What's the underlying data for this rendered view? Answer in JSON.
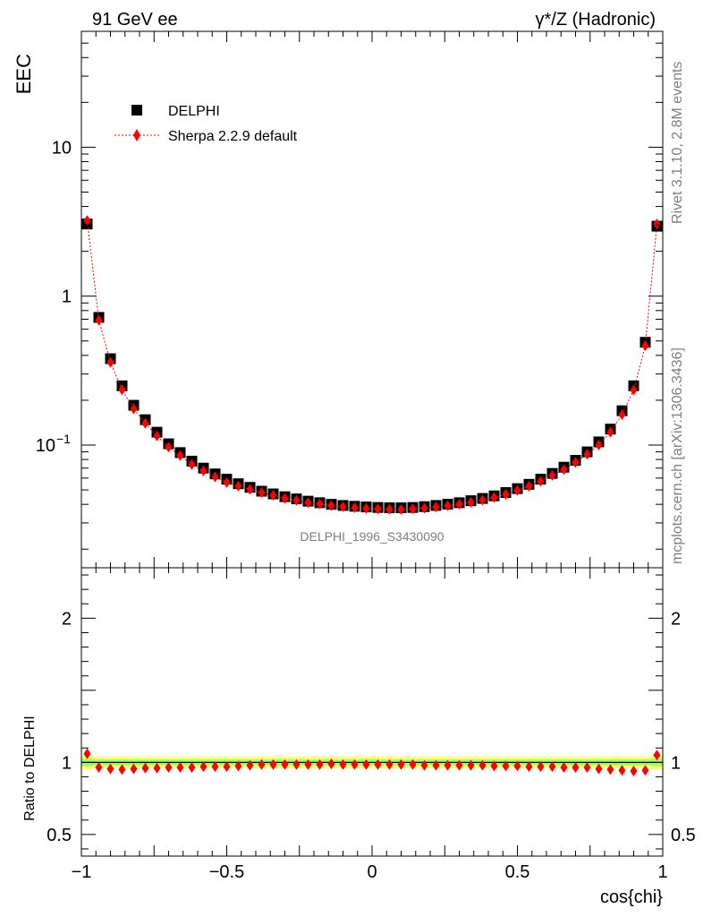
{
  "header": {
    "left": "91 GeV ee",
    "right": "γ*/Z (Hadronic)"
  },
  "side_labels": {
    "rivet": "Rivet 3.1.10,  2.8M events",
    "source": "mcplots.cern.ch [arXiv:1306.3436]"
  },
  "watermark": "DELPHI_1996_S3430090",
  "colors": {
    "data": "#000000",
    "mc": "#ff0000",
    "band_outer": "#ffff66",
    "band_inner": "#99ff66"
  },
  "chart_data": [
    {
      "type": "scatter",
      "ylabel": "EEC",
      "xlabel": "cos{chi}",
      "xlim": [
        -1.0,
        1.0
      ],
      "ylim": [
        0.015,
        60
      ],
      "yscale": "log",
      "yticks": [
        "10",
        "1",
        "10^-1"
      ],
      "legend_position": "top-left",
      "x": [
        -0.98,
        -0.94,
        -0.9,
        -0.86,
        -0.82,
        -0.78,
        -0.74,
        -0.7,
        -0.66,
        -0.62,
        -0.58,
        -0.54,
        -0.5,
        -0.46,
        -0.42,
        -0.38,
        -0.34,
        -0.3,
        -0.26,
        -0.22,
        -0.18,
        -0.14,
        -0.1,
        -0.06,
        -0.02,
        0.02,
        0.06,
        0.1,
        0.14,
        0.18,
        0.22,
        0.26,
        0.3,
        0.34,
        0.38,
        0.42,
        0.46,
        0.5,
        0.54,
        0.58,
        0.62,
        0.66,
        0.7,
        0.74,
        0.78,
        0.82,
        0.86,
        0.9,
        0.94,
        0.98
      ],
      "series": [
        {
          "name": "DELPHI",
          "marker": "square",
          "values": [
            3.05,
            0.72,
            0.38,
            0.25,
            0.185,
            0.148,
            0.122,
            0.102,
            0.089,
            0.078,
            0.07,
            0.064,
            0.059,
            0.055,
            0.052,
            0.049,
            0.047,
            0.045,
            0.0435,
            0.042,
            0.041,
            0.04,
            0.0393,
            0.0388,
            0.0384,
            0.0381,
            0.0379,
            0.0379,
            0.0381,
            0.0386,
            0.0393,
            0.0401,
            0.041,
            0.0423,
            0.0438,
            0.0456,
            0.048,
            0.051,
            0.0545,
            0.059,
            0.0645,
            0.071,
            0.079,
            0.09,
            0.105,
            0.128,
            0.17,
            0.25,
            0.49,
            2.95
          ]
        },
        {
          "name": "Sherpa 2.2.9 default",
          "marker": "diamond",
          "line": "dotted",
          "values": [
            3.22,
            0.69,
            0.36,
            0.235,
            0.175,
            0.14,
            0.115,
            0.097,
            0.085,
            0.074,
            0.067,
            0.061,
            0.056,
            0.053,
            0.0505,
            0.048,
            0.046,
            0.0438,
            0.0425,
            0.041,
            0.0402,
            0.0392,
            0.0385,
            0.038,
            0.0375,
            0.0372,
            0.037,
            0.0369,
            0.0373,
            0.0377,
            0.0383,
            0.0391,
            0.04,
            0.0412,
            0.0427,
            0.0444,
            0.0467,
            0.0496,
            0.0529,
            0.0572,
            0.0625,
            0.0685,
            0.0765,
            0.0868,
            0.1,
            0.122,
            0.16,
            0.234,
            0.465,
            3.05
          ]
        }
      ]
    },
    {
      "type": "scatter",
      "ylabel": "Ratio to DELPHI",
      "xlabel": "cos{chi}",
      "xlim": [
        -1.0,
        1.0
      ],
      "ylim": [
        0.35,
        2.35
      ],
      "yticks": [
        "2",
        "1",
        "0.5"
      ],
      "xticks": [
        "−1",
        "−0.5",
        "0",
        "0.5",
        "1"
      ],
      "reference_line": 1,
      "x": [
        -0.98,
        -0.94,
        -0.9,
        -0.86,
        -0.82,
        -0.78,
        -0.74,
        -0.7,
        -0.66,
        -0.62,
        -0.58,
        -0.54,
        -0.5,
        -0.46,
        -0.42,
        -0.38,
        -0.34,
        -0.3,
        -0.26,
        -0.22,
        -0.18,
        -0.14,
        -0.1,
        -0.06,
        -0.02,
        0.02,
        0.06,
        0.1,
        0.14,
        0.18,
        0.22,
        0.26,
        0.3,
        0.34,
        0.38,
        0.42,
        0.46,
        0.5,
        0.54,
        0.58,
        0.62,
        0.66,
        0.7,
        0.74,
        0.78,
        0.82,
        0.86,
        0.9,
        0.94,
        0.98
      ],
      "band_outer": [
        0.05,
        0.04,
        0.04,
        0.04,
        0.04,
        0.04,
        0.04,
        0.04,
        0.04,
        0.04,
        0.04,
        0.04,
        0.04,
        0.04,
        0.04,
        0.04,
        0.04,
        0.04,
        0.04,
        0.04,
        0.04,
        0.04,
        0.04,
        0.04,
        0.04,
        0.04,
        0.04,
        0.04,
        0.04,
        0.04,
        0.04,
        0.04,
        0.04,
        0.04,
        0.04,
        0.04,
        0.04,
        0.04,
        0.04,
        0.04,
        0.04,
        0.04,
        0.04,
        0.04,
        0.04,
        0.04,
        0.04,
        0.04,
        0.04,
        0.05
      ],
      "band_inner": [
        0.025,
        0.02,
        0.02,
        0.02,
        0.02,
        0.02,
        0.02,
        0.02,
        0.02,
        0.02,
        0.02,
        0.02,
        0.02,
        0.02,
        0.02,
        0.02,
        0.02,
        0.02,
        0.02,
        0.02,
        0.02,
        0.02,
        0.02,
        0.02,
        0.02,
        0.02,
        0.02,
        0.02,
        0.02,
        0.02,
        0.02,
        0.02,
        0.02,
        0.02,
        0.02,
        0.02,
        0.02,
        0.02,
        0.02,
        0.02,
        0.02,
        0.02,
        0.02,
        0.02,
        0.02,
        0.02,
        0.02,
        0.02,
        0.02,
        0.025
      ],
      "series": [
        {
          "name": "Sherpa 2.2.9 default",
          "marker": "diamond",
          "values": [
            1.06,
            0.965,
            0.955,
            0.95,
            0.955,
            0.96,
            0.96,
            0.965,
            0.965,
            0.965,
            0.97,
            0.97,
            0.97,
            0.975,
            0.98,
            0.985,
            0.985,
            0.985,
            0.985,
            0.985,
            0.985,
            0.99,
            0.985,
            0.985,
            0.985,
            0.985,
            0.985,
            0.985,
            0.985,
            0.98,
            0.98,
            0.98,
            0.98,
            0.98,
            0.98,
            0.975,
            0.975,
            0.975,
            0.97,
            0.97,
            0.97,
            0.965,
            0.965,
            0.965,
            0.955,
            0.95,
            0.945,
            0.94,
            0.945,
            1.05
          ]
        }
      ]
    }
  ]
}
